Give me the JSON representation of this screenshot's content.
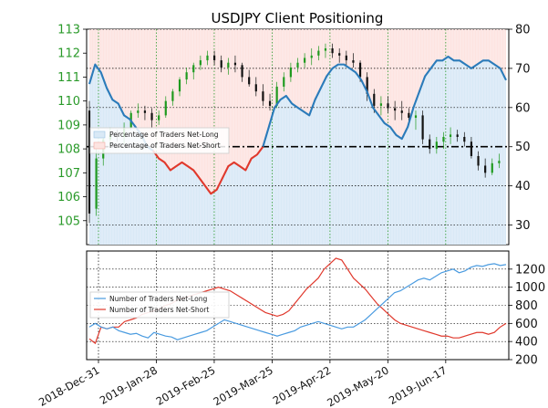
{
  "chart_data": [
    {
      "type": "candlestick+area",
      "title": "USDJPY Client Positioning",
      "price_axis": {
        "side": "left",
        "ylim": [
          104,
          113
        ],
        "ticks": [
          "105",
          "106",
          "107",
          "108",
          "109",
          "110",
          "111",
          "112",
          "113"
        ],
        "color": "#2a9a2a"
      },
      "percent_axis": {
        "side": "right",
        "ylim": [
          25,
          80
        ],
        "ticks": [
          "30",
          "40",
          "50",
          "60",
          "70",
          "80"
        ]
      },
      "x_ticks": [
        "2018-Dec-31",
        "2019-Jan-28",
        "2019-Feb-25",
        "2019-Mar-25",
        "2019-Apr-22",
        "2019-May-20",
        "2019-Jun-17"
      ],
      "legend": {
        "placement": "left",
        "entries": [
          "Percentage of Traders Net-Long",
          "Percentage of Traders Net-Short"
        ]
      },
      "reference_line": 50,
      "grid": true,
      "colors": {
        "long": "#2b7bba",
        "short": "#e0382c",
        "long_fill": "#d9e9f6",
        "short_fill": "#fde4e1",
        "up_candle": "#1f9a1f",
        "down_candle": "#111111"
      },
      "series": [
        {
          "name": "Percentage of Traders Net-Long",
          "x": [
            "2018-Dec-31",
            "2019-Jan-02",
            "2019-Jan-04",
            "2019-Jan-07",
            "2019-Jan-09",
            "2019-Jan-14",
            "2019-Jan-17",
            "2019-Jan-21",
            "2019-Jan-23",
            "2019-Jan-28",
            "2019-Feb-01",
            "2019-Feb-04",
            "2019-Feb-08",
            "2019-Feb-11",
            "2019-Feb-13",
            "2019-Feb-15",
            "2019-Feb-18",
            "2019-Feb-20",
            "2019-Feb-22",
            "2019-Feb-25",
            "2019-Feb-27",
            "2019-Mar-01",
            "2019-Mar-04",
            "2019-Mar-06",
            "2019-Mar-08",
            "2019-Mar-11",
            "2019-Mar-13",
            "2019-Mar-15",
            "2019-Mar-18",
            "2019-Mar-20",
            "2019-Mar-22",
            "2019-Mar-25",
            "2019-Mar-27",
            "2019-Mar-29",
            "2019-Apr-01",
            "2019-Apr-03",
            "2019-Apr-05",
            "2019-Apr-08",
            "2019-Apr-10",
            "2019-Apr-12",
            "2019-Apr-15",
            "2019-Apr-17",
            "2019-Apr-19",
            "2019-Apr-22",
            "2019-Apr-24",
            "2019-Apr-26",
            "2019-Apr-29",
            "2019-May-01",
            "2019-May-03",
            "2019-May-06",
            "2019-May-08",
            "2019-May-10",
            "2019-May-13",
            "2019-May-15",
            "2019-May-17",
            "2019-May-20",
            "2019-May-22",
            "2019-May-24",
            "2019-May-27",
            "2019-May-29",
            "2019-May-31",
            "2019-Jun-03",
            "2019-Jun-05",
            "2019-Jun-07",
            "2019-Jun-10",
            "2019-Jun-12",
            "2019-Jun-14",
            "2019-Jun-17",
            "2019-Jun-19",
            "2019-Jun-21",
            "2019-Jun-24",
            "2019-Jun-26",
            "2019-Jun-28"
          ],
          "values": [
            66,
            71,
            69,
            65,
            62,
            61,
            58,
            57,
            55,
            53,
            50,
            49,
            47,
            46,
            44,
            45,
            46,
            45,
            44,
            42,
            40,
            38,
            39,
            42,
            45,
            46,
            45,
            44,
            47,
            48,
            50,
            55,
            60,
            62,
            63,
            61,
            60,
            59,
            58,
            62,
            65,
            68,
            70,
            71,
            71,
            70,
            69,
            67,
            64,
            60,
            58,
            56,
            55,
            53,
            52,
            55,
            60,
            64,
            68,
            70,
            72,
            72,
            73,
            72,
            72,
            71,
            70,
            71,
            72,
            72,
            71,
            70,
            67
          ]
        },
        {
          "name": "Percentage of Traders Net-Short",
          "x": [
            "2018-Dec-31",
            "2019-Jan-02",
            "2019-Jan-04",
            "2019-Jan-07",
            "2019-Jan-09",
            "2019-Jan-14",
            "2019-Jan-17",
            "2019-Jan-21",
            "2019-Jan-23",
            "2019-Jan-28",
            "2019-Feb-01",
            "2019-Feb-04",
            "2019-Feb-08",
            "2019-Feb-11",
            "2019-Feb-13",
            "2019-Feb-15",
            "2019-Feb-18",
            "2019-Feb-20",
            "2019-Feb-22",
            "2019-Feb-25",
            "2019-Feb-27",
            "2019-Mar-01",
            "2019-Mar-04",
            "2019-Mar-06",
            "2019-Mar-08",
            "2019-Mar-11",
            "2019-Mar-13",
            "2019-Mar-15",
            "2019-Mar-18",
            "2019-Mar-20",
            "2019-Mar-22",
            "2019-Mar-25",
            "2019-Mar-27",
            "2019-Mar-29",
            "2019-Apr-01",
            "2019-Apr-03",
            "2019-Apr-05",
            "2019-Apr-08",
            "2019-Apr-10",
            "2019-Apr-12",
            "2019-Apr-15",
            "2019-Apr-17",
            "2019-Apr-19",
            "2019-Apr-22",
            "2019-Apr-24",
            "2019-Apr-26",
            "2019-Apr-29",
            "2019-May-01",
            "2019-May-03",
            "2019-May-06",
            "2019-May-08",
            "2019-May-10",
            "2019-May-13",
            "2019-May-15",
            "2019-May-17",
            "2019-May-20",
            "2019-May-22",
            "2019-May-24",
            "2019-May-27",
            "2019-May-29",
            "2019-May-31",
            "2019-Jun-03",
            "2019-Jun-05",
            "2019-Jun-07",
            "2019-Jun-10",
            "2019-Jun-12",
            "2019-Jun-14",
            "2019-Jun-17",
            "2019-Jun-19",
            "2019-Jun-21",
            "2019-Jun-24",
            "2019-Jun-26",
            "2019-Jun-28"
          ],
          "values": [
            34,
            29,
            31,
            35,
            38,
            39,
            42,
            43,
            45,
            47,
            50,
            51,
            53,
            54,
            56,
            55,
            54,
            55,
            56,
            58,
            60,
            62,
            61,
            58,
            55,
            54,
            55,
            56,
            53,
            52,
            50,
            45,
            40,
            38,
            37,
            39,
            40,
            41,
            42,
            38,
            35,
            32,
            30,
            29,
            29,
            30,
            31,
            33,
            36,
            40,
            42,
            44,
            45,
            47,
            48,
            45,
            40,
            36,
            32,
            30,
            28,
            28,
            27,
            28,
            28,
            29,
            30,
            29,
            28,
            28,
            29,
            30,
            33
          ]
        }
      ],
      "note": "Net-Long/Net-Short percentages and candle prices are estimated from the figure."
    },
    {
      "type": "line",
      "y_axis": {
        "side": "right",
        "ylim": [
          200,
          1400
        ],
        "ticks": [
          "200",
          "400",
          "600",
          "800",
          "1000",
          "1200"
        ]
      },
      "legend": {
        "placement": "left",
        "entries": [
          "Number of Traders Net-Long",
          "Number of Traders Net-Short"
        ]
      },
      "grid": true,
      "series": [
        {
          "name": "Number of Traders Net-Long",
          "values": [
            560,
            600,
            560,
            540,
            560,
            520,
            500,
            480,
            490,
            460,
            440,
            500,
            480,
            460,
            450,
            420,
            440,
            460,
            480,
            500,
            520,
            560,
            600,
            640,
            620,
            600,
            580,
            560,
            540,
            520,
            500,
            480,
            460,
            480,
            500,
            520,
            560,
            580,
            600,
            620,
            600,
            580,
            560,
            540,
            560,
            560,
            600,
            640,
            700,
            760,
            820,
            880,
            940,
            960,
            1000,
            1040,
            1080,
            1100,
            1080,
            1120,
            1160,
            1180,
            1200,
            1160,
            1180,
            1220,
            1240,
            1230,
            1250,
            1260,
            1240,
            1250
          ]
        },
        {
          "name": "Number of Traders Net-Short",
          "values": [
            430,
            380,
            560,
            540,
            560,
            560,
            620,
            640,
            660,
            700,
            720,
            740,
            760,
            800,
            820,
            860,
            880,
            900,
            920,
            940,
            960,
            980,
            1000,
            980,
            960,
            920,
            880,
            840,
            800,
            760,
            720,
            700,
            680,
            700,
            740,
            820,
            900,
            980,
            1040,
            1100,
            1200,
            1260,
            1320,
            1300,
            1200,
            1100,
            1040,
            980,
            900,
            820,
            760,
            700,
            640,
            600,
            580,
            560,
            540,
            520,
            500,
            480,
            460,
            460,
            440,
            440,
            460,
            480,
            500,
            500,
            480,
            500,
            560,
            600
          ]
        }
      ]
    }
  ],
  "candles": [
    [
      0,
      109.6,
      110.0,
      104.9,
      105.3
    ],
    [
      1,
      105.5,
      108.0,
      105.2,
      107.6
    ],
    [
      2,
      107.6,
      108.6,
      107.3,
      108.4
    ],
    [
      3,
      108.4,
      108.9,
      108.1,
      108.6
    ],
    [
      4,
      108.6,
      108.8,
      108.3,
      108.5
    ],
    [
      5,
      108.5,
      109.1,
      108.2,
      108.9
    ],
    [
      6,
      108.9,
      109.6,
      108.8,
      109.5
    ],
    [
      7,
      109.5,
      109.9,
      109.3,
      109.6
    ],
    [
      8,
      109.6,
      109.8,
      109.2,
      109.5
    ],
    [
      9,
      109.5,
      109.7,
      108.9,
      109.2
    ],
    [
      10,
      109.2,
      109.6,
      109.0,
      109.4
    ],
    [
      11,
      109.4,
      110.2,
      109.3,
      110.0
    ],
    [
      12,
      110.0,
      110.5,
      109.8,
      110.4
    ],
    [
      13,
      110.4,
      111.0,
      110.2,
      110.9
    ],
    [
      14,
      110.9,
      111.4,
      110.7,
      111.2
    ],
    [
      15,
      111.2,
      111.6,
      110.9,
      111.5
    ],
    [
      16,
      111.5,
      111.9,
      111.3,
      111.7
    ],
    [
      17,
      111.7,
      112.1,
      111.5,
      111.9
    ],
    [
      18,
      111.9,
      112.1,
      111.5,
      111.7
    ],
    [
      19,
      111.7,
      111.9,
      111.2,
      111.4
    ],
    [
      20,
      111.4,
      111.8,
      111.1,
      111.6
    ],
    [
      21,
      111.6,
      111.9,
      111.2,
      111.5
    ],
    [
      22,
      111.5,
      111.6,
      110.8,
      111.0
    ],
    [
      23,
      111.0,
      111.3,
      110.6,
      110.7
    ],
    [
      24,
      110.7,
      111.0,
      110.2,
      110.4
    ],
    [
      25,
      110.4,
      110.7,
      109.8,
      110.0
    ],
    [
      26,
      110.0,
      110.3,
      109.6,
      109.8
    ],
    [
      27,
      109.8,
      110.8,
      109.7,
      110.6
    ],
    [
      28,
      110.6,
      111.2,
      110.4,
      111.0
    ],
    [
      29,
      111.0,
      111.6,
      110.8,
      111.4
    ],
    [
      30,
      111.4,
      111.8,
      111.2,
      111.6
    ],
    [
      31,
      111.6,
      112.0,
      111.4,
      111.8
    ],
    [
      32,
      111.8,
      112.2,
      111.5,
      111.9
    ],
    [
      33,
      111.9,
      112.3,
      111.7,
      112.1
    ],
    [
      34,
      112.1,
      112.4,
      111.8,
      112.2
    ],
    [
      35,
      112.2,
      112.4,
      111.8,
      112.0
    ],
    [
      36,
      112.0,
      112.2,
      111.6,
      111.9
    ],
    [
      37,
      111.9,
      112.1,
      111.5,
      111.7
    ],
    [
      38,
      111.7,
      112.0,
      111.4,
      111.6
    ],
    [
      39,
      111.6,
      111.7,
      110.8,
      111.0
    ],
    [
      40,
      111.0,
      111.2,
      110.0,
      110.3
    ],
    [
      41,
      110.3,
      110.5,
      109.5,
      109.8
    ],
    [
      42,
      109.8,
      110.2,
      109.4,
      109.9
    ],
    [
      43,
      109.9,
      110.2,
      109.5,
      109.7
    ],
    [
      44,
      109.7,
      110.0,
      109.2,
      109.6
    ],
    [
      45,
      109.6,
      110.0,
      109.2,
      109.5
    ],
    [
      46,
      109.5,
      109.7,
      109.0,
      109.3
    ],
    [
      47,
      109.3,
      109.6,
      108.8,
      109.4
    ],
    [
      48,
      109.4,
      109.6,
      108.2,
      108.4
    ],
    [
      49,
      108.4,
      108.6,
      107.8,
      108.0
    ],
    [
      50,
      108.0,
      108.5,
      107.8,
      108.3
    ],
    [
      51,
      108.3,
      108.7,
      108.0,
      108.5
    ],
    [
      52,
      108.5,
      108.9,
      108.2,
      108.6
    ],
    [
      53,
      108.6,
      108.8,
      108.3,
      108.5
    ],
    [
      54,
      108.5,
      108.7,
      108.1,
      108.3
    ],
    [
      55,
      108.3,
      108.5,
      107.6,
      107.7
    ],
    [
      56,
      107.7,
      107.9,
      107.1,
      107.3
    ],
    [
      57,
      107.3,
      107.6,
      106.8,
      107.0
    ],
    [
      58,
      107.0,
      107.6,
      106.9,
      107.4
    ],
    [
      59,
      107.4,
      107.8,
      107.2,
      107.5
    ]
  ]
}
